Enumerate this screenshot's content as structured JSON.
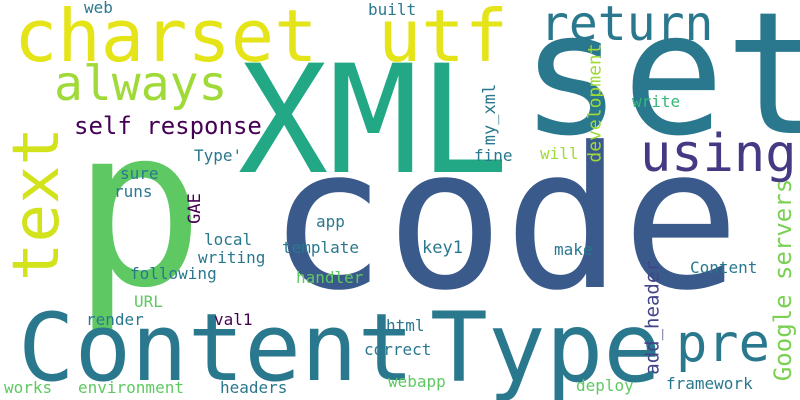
{
  "words": [
    {
      "text": "code",
      "weight": 1.0,
      "color": "#3b5a8c",
      "orientation": "horizontal"
    },
    {
      "text": "p",
      "weight": 0.98,
      "color": "#5ec962",
      "orientation": "horizontal"
    },
    {
      "text": "set",
      "weight": 0.86,
      "color": "#2a788e",
      "orientation": "horizontal"
    },
    {
      "text": "XML",
      "weight": 0.84,
      "color": "#22a884",
      "orientation": "horizontal"
    },
    {
      "text": "Content",
      "weight": 0.55,
      "color": "#2a788e",
      "orientation": "horizontal"
    },
    {
      "text": "Type",
      "weight": 0.55,
      "color": "#2a788e",
      "orientation": "horizontal"
    },
    {
      "text": "charset",
      "weight": 0.45,
      "color": "#e5e419",
      "orientation": "horizontal"
    },
    {
      "text": "utf",
      "weight": 0.45,
      "color": "#e5e419",
      "orientation": "horizontal"
    },
    {
      "text": "text",
      "weight": 0.42,
      "color": "#d2e21b",
      "orientation": "vertical"
    },
    {
      "text": "using",
      "weight": 0.32,
      "color": "#443a83",
      "orientation": "horizontal"
    },
    {
      "text": "return",
      "weight": 0.3,
      "color": "#2a788e",
      "orientation": "horizontal"
    },
    {
      "text": "always",
      "weight": 0.3,
      "color": "#a0da39",
      "orientation": "horizontal"
    },
    {
      "text": "pre",
      "weight": 0.3,
      "color": "#2a788e",
      "orientation": "horizontal"
    },
    {
      "text": "self",
      "weight": 0.16,
      "color": "#440154",
      "orientation": "horizontal"
    },
    {
      "text": "response",
      "weight": 0.16,
      "color": "#440154",
      "orientation": "horizontal"
    },
    {
      "text": "Google",
      "weight": 0.15,
      "color": "#7ad151",
      "orientation": "vertical"
    },
    {
      "text": "servers",
      "weight": 0.15,
      "color": "#7ad151",
      "orientation": "vertical"
    },
    {
      "text": "add_header",
      "weight": 0.12,
      "color": "#414487",
      "orientation": "vertical"
    },
    {
      "text": "development",
      "weight": 0.11,
      "color": "#a0da39",
      "orientation": "vertical"
    },
    {
      "text": "my_xml",
      "weight": 0.1,
      "color": "#2a788e",
      "orientation": "vertical"
    },
    {
      "text": "GAE",
      "weight": 0.1,
      "color": "#440154",
      "orientation": "vertical"
    },
    {
      "text": "web",
      "weight": 0.09,
      "color": "#2a788e",
      "orientation": "horizontal"
    },
    {
      "text": "built",
      "weight": 0.09,
      "color": "#2a788e",
      "orientation": "horizontal"
    },
    {
      "text": "Type'",
      "weight": 0.09,
      "color": "#2a788e",
      "orientation": "horizontal"
    },
    {
      "text": "sure",
      "weight": 0.09,
      "color": "#2a788e",
      "orientation": "horizontal"
    },
    {
      "text": "runs",
      "weight": 0.09,
      "color": "#2a788e",
      "orientation": "horizontal"
    },
    {
      "text": "write",
      "weight": 0.09,
      "color": "#35b779",
      "orientation": "horizontal"
    },
    {
      "text": "fine",
      "weight": 0.09,
      "color": "#2a788e",
      "orientation": "horizontal"
    },
    {
      "text": "will",
      "weight": 0.09,
      "color": "#a0da39",
      "orientation": "horizontal"
    },
    {
      "text": "app",
      "weight": 0.09,
      "color": "#2a788e",
      "orientation": "horizontal"
    },
    {
      "text": "local",
      "weight": 0.09,
      "color": "#2a788e",
      "orientation": "horizontal"
    },
    {
      "text": "template",
      "weight": 0.09,
      "color": "#2a788e",
      "orientation": "horizontal"
    },
    {
      "text": "key1",
      "weight": 0.09,
      "color": "#2a788e",
      "orientation": "horizontal"
    },
    {
      "text": "make",
      "weight": 0.09,
      "color": "#2a788e",
      "orientation": "horizontal"
    },
    {
      "text": "writing",
      "weight": 0.09,
      "color": "#2a788e",
      "orientation": "horizontal"
    },
    {
      "text": "following",
      "weight": 0.09,
      "color": "#2a788e",
      "orientation": "horizontal"
    },
    {
      "text": "handler",
      "weight": 0.09,
      "color": "#5ec962",
      "orientation": "horizontal"
    },
    {
      "text": "Content",
      "weight": 0.09,
      "color": "#2a788e",
      "orientation": "horizontal"
    },
    {
      "text": "URL",
      "weight": 0.09,
      "color": "#5ec962",
      "orientation": "horizontal"
    },
    {
      "text": "render",
      "weight": 0.09,
      "color": "#2a788e",
      "orientation": "horizontal"
    },
    {
      "text": "val1",
      "weight": 0.09,
      "color": "#440154",
      "orientation": "horizontal"
    },
    {
      "text": "html",
      "weight": 0.09,
      "color": "#2a788e",
      "orientation": "horizontal"
    },
    {
      "text": "correct",
      "weight": 0.09,
      "color": "#2a788e",
      "orientation": "horizontal"
    },
    {
      "text": "webapp",
      "weight": 0.09,
      "color": "#5ec962",
      "orientation": "horizontal"
    },
    {
      "text": "deploy",
      "weight": 0.09,
      "color": "#5ec962",
      "orientation": "horizontal"
    },
    {
      "text": "framework",
      "weight": 0.09,
      "color": "#2a788e",
      "orientation": "horizontal"
    },
    {
      "text": "works",
      "weight": 0.09,
      "color": "#5ec962",
      "orientation": "horizontal"
    },
    {
      "text": "environment",
      "weight": 0.09,
      "color": "#5ec962",
      "orientation": "horizontal"
    },
    {
      "text": "headers",
      "weight": 0.09,
      "color": "#2a788e",
      "orientation": "horizontal"
    }
  ]
}
